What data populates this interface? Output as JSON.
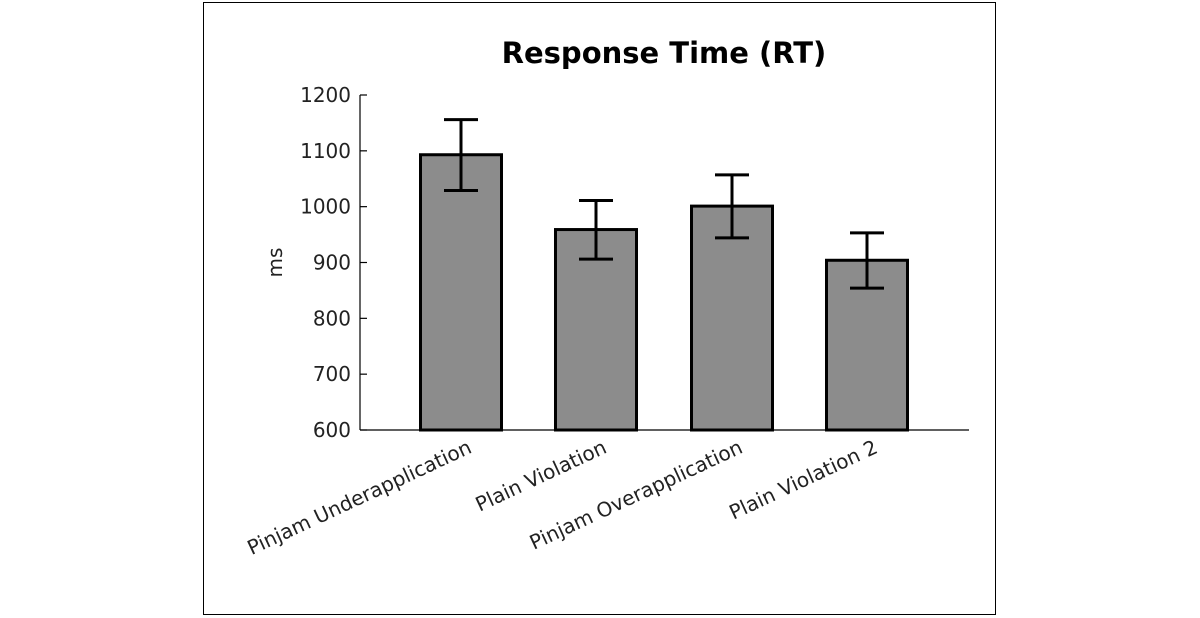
{
  "chart_data": {
    "type": "bar",
    "title": "Response Time (RT)",
    "xlabel": "",
    "ylabel": "ms",
    "ylim": [
      600,
      1200
    ],
    "yticks": [
      600,
      700,
      800,
      900,
      1000,
      1100,
      1200
    ],
    "categories": [
      "Pinjam Underapplication",
      "Plain Violation",
      "Pinjam Overapplication",
      "Plain Violation 2"
    ],
    "values": [
      1093,
      959,
      1001,
      904
    ],
    "error_low": [
      1029,
      906,
      944,
      854
    ],
    "error_high": [
      1156,
      1011,
      1057,
      953
    ],
    "colors": {
      "bar_fill": "#8c8c8c",
      "bar_edge": "#000000"
    },
    "grid": false,
    "legend": "none"
  }
}
